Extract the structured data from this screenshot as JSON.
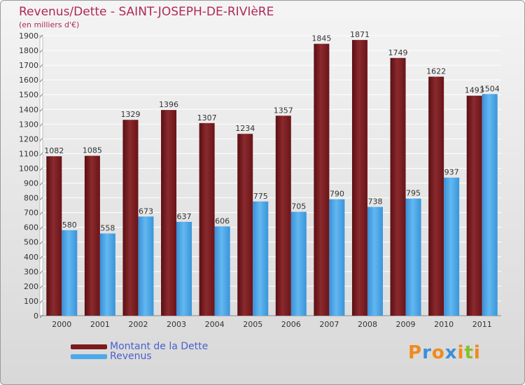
{
  "chart_data": {
    "type": "bar",
    "title": "Revenus/Dette - SAINT-JOSEPH-DE-RIVIèRE",
    "subtitle": "(en milliers d'€)",
    "categories": [
      "2000",
      "2001",
      "2002",
      "2003",
      "2004",
      "2005",
      "2006",
      "2007",
      "2008",
      "2009",
      "2010",
      "2011"
    ],
    "series": [
      {
        "name": "Montant de la Dette",
        "color": "#7a1a1e",
        "values": [
          1082,
          1085,
          1329,
          1396,
          1307,
          1234,
          1357,
          1845,
          1871,
          1749,
          1622,
          1493
        ]
      },
      {
        "name": "Revenus",
        "color": "#4da8ea",
        "values": [
          580,
          558,
          673,
          637,
          606,
          775,
          705,
          790,
          738,
          795,
          937,
          1504
        ]
      }
    ],
    "ylim": [
      0,
      1900
    ],
    "yticks": [
      0,
      100,
      200,
      300,
      400,
      500,
      600,
      700,
      800,
      900,
      1000,
      1100,
      1200,
      1300,
      1400,
      1500,
      1600,
      1700,
      1800,
      1900
    ],
    "grid": true,
    "legend_position": "bottom-left",
    "data_labels": true
  },
  "logo": {
    "text": "Proxiti",
    "colors": [
      "#f08a1c",
      "#3a8fd8",
      "#f08a1c",
      "#3a8fd8",
      "#f08a1c",
      "#8abf2a",
      "#f08a1c"
    ]
  }
}
